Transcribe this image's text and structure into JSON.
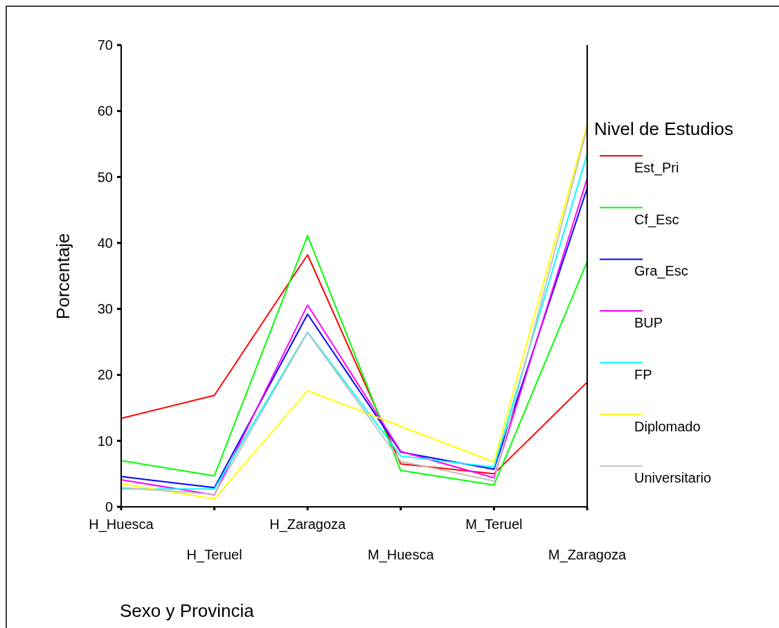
{
  "chart_data": {
    "type": "line",
    "xlabel": "Sexo y Provincia",
    "ylabel": "Porcentaje",
    "legend_title": "Nivel de Estudios",
    "legend": "right",
    "categories": [
      "H_Huesca",
      "H_Teruel",
      "H_Zaragoza",
      "M_Huesca",
      "M_Teruel",
      "M_Zaragoza"
    ],
    "ylim": [
      0,
      70
    ],
    "yticks": [
      0,
      10,
      20,
      30,
      40,
      50,
      60,
      70
    ],
    "series": [
      {
        "name": "Est_Pri",
        "color": "#ff0000",
        "values": [
          13.4,
          16.9,
          38.2,
          6.5,
          5.0,
          18.9
        ]
      },
      {
        "name": "Cf_Esc",
        "color": "#00ff00",
        "values": [
          7.0,
          4.7,
          41.1,
          5.5,
          3.3,
          37.2
        ]
      },
      {
        "name": "Gra_Esc",
        "color": "#0000ff",
        "values": [
          4.6,
          2.9,
          29.2,
          8.3,
          5.7,
          48.3
        ]
      },
      {
        "name": "BUP",
        "color": "#ff00ff",
        "values": [
          4.1,
          1.8,
          30.6,
          8.4,
          4.4,
          49.8
        ]
      },
      {
        "name": "FP",
        "color": "#00ffff",
        "values": [
          2.7,
          2.7,
          26.5,
          7.7,
          6.0,
          53.5
        ]
      },
      {
        "name": "Diplomado",
        "color": "#ffff00",
        "values": [
          3.5,
          1.2,
          17.6,
          12.2,
          6.8,
          58.0
        ]
      },
      {
        "name": "Universitario",
        "color": "#c0c0c0",
        "values": [
          2.9,
          1.9,
          26.4,
          6.9,
          3.9,
          57.4
        ]
      }
    ]
  }
}
